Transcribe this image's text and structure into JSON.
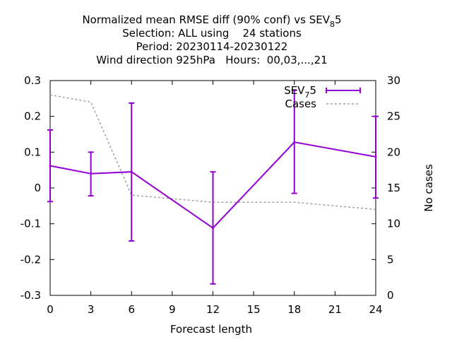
{
  "chart_data": {
    "type": "line",
    "title": {
      "line1": {
        "prefix": "Normalized mean RMSE diff (90% conf) vs SEV",
        "sub": "8",
        "suffix": "5"
      },
      "line2": "Selection: ALL using    24 stations",
      "line3": "Period: 20230114-20230122",
      "line4": "Wind direction 925hPa   Hours:  00,03,...,21"
    },
    "xlabel": "Forecast length",
    "ylabel_right": "No cases",
    "xlim": [
      0,
      24
    ],
    "ylim": [
      -0.3,
      0.3
    ],
    "y2lim": [
      0,
      30
    ],
    "x_ticks": [
      0,
      3,
      6,
      9,
      12,
      15,
      18,
      21,
      24
    ],
    "y_ticks": [
      -0.3,
      -0.2,
      -0.1,
      0,
      0.1,
      0.2,
      0.3
    ],
    "y_tick_labels": [
      "-0.3",
      "-0.2",
      "-0.1",
      "0",
      "0.1",
      "0.2",
      "0.3"
    ],
    "y2_ticks": [
      0,
      5,
      10,
      15,
      20,
      25,
      30
    ],
    "series": [
      {
        "legend": {
          "prefix": "SEV",
          "sub": "7",
          "suffix": "5"
        },
        "color": "#9400d3",
        "x": [
          0,
          3,
          6,
          12,
          18,
          24
        ],
        "y": [
          0.062,
          0.04,
          0.045,
          -0.112,
          0.128,
          0.087
        ],
        "err_low": [
          -0.038,
          -0.022,
          -0.148,
          -0.268,
          -0.015,
          -0.028
        ],
        "err_high": [
          0.162,
          0.1,
          0.237,
          0.045,
          0.273,
          0.2
        ]
      },
      {
        "name": "Cases",
        "color": "#a0a0a0",
        "axis": "right",
        "x": [
          0,
          3,
          6,
          12,
          18,
          24
        ],
        "y": [
          28,
          27,
          14,
          13,
          13,
          12
        ]
      }
    ],
    "legend_position": "top-right",
    "grid": false
  }
}
